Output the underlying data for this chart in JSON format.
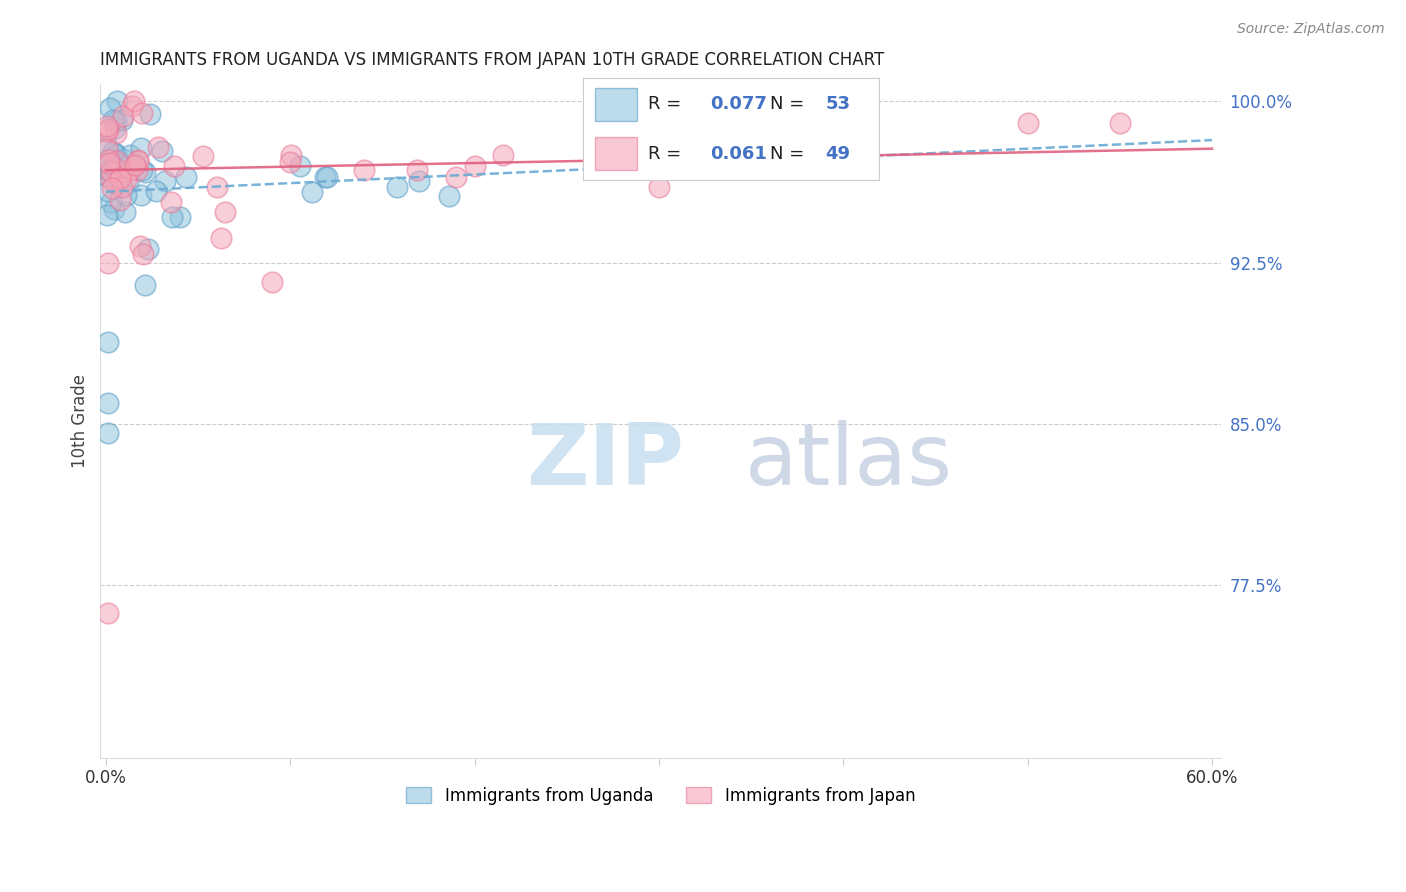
{
  "title": "IMMIGRANTS FROM UGANDA VS IMMIGRANTS FROM JAPAN 10TH GRADE CORRELATION CHART",
  "source": "Source: ZipAtlas.com",
  "ylabel": "10th Grade",
  "ytick_labels": [
    "100.0%",
    "92.5%",
    "85.0%",
    "77.5%"
  ],
  "ytick_values": [
    1.0,
    0.925,
    0.85,
    0.775
  ],
  "ymin": 0.695,
  "ymax": 1.008,
  "xmin": -0.003,
  "xmax": 0.605,
  "uganda_R": "0.077",
  "uganda_N": "53",
  "japan_R": "0.061",
  "japan_N": "49",
  "uganda_color": "#92c5de",
  "japan_color": "#f4a6b8",
  "uganda_edge_color": "#5b9dc9",
  "japan_edge_color": "#e87a9a",
  "uganda_line_color": "#6aaad4",
  "japan_line_color": "#e06080",
  "legend_label_uganda": "Immigrants from Uganda",
  "legend_label_japan": "Immigrants from Japan",
  "watermark_zip_color": "#c8dff0",
  "watermark_atlas_color": "#c8c8d8"
}
